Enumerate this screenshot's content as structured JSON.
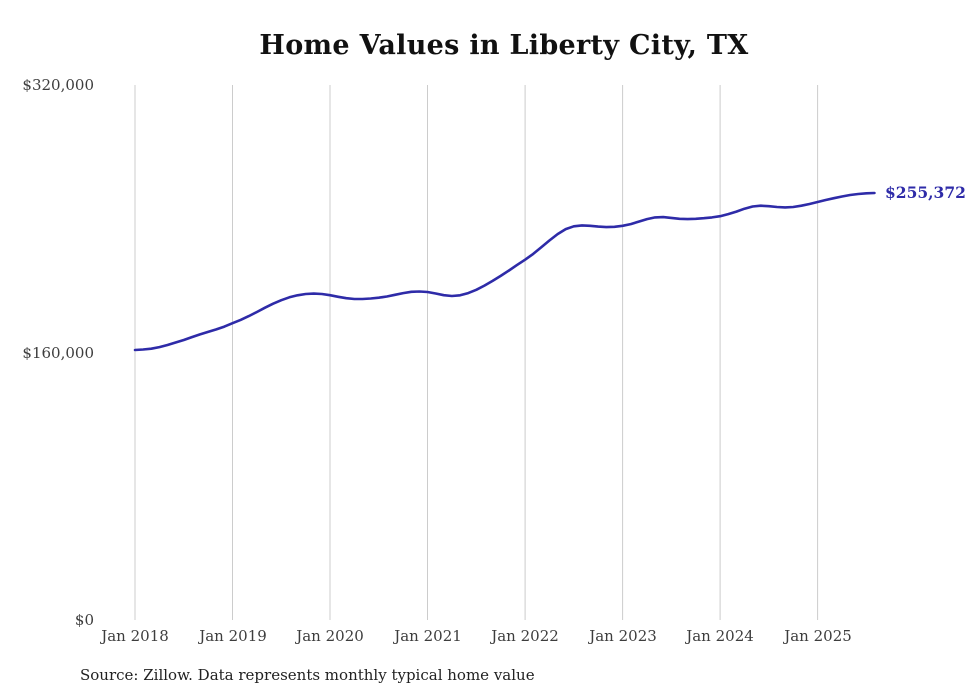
{
  "chart_data": {
    "type": "line",
    "title": "Home Values in Liberty City, TX",
    "series_name": "Monthly typical home value",
    "x": [
      "2018-01",
      "2018-02",
      "2018-03",
      "2018-04",
      "2018-05",
      "2018-06",
      "2018-07",
      "2018-08",
      "2018-09",
      "2018-10",
      "2018-11",
      "2018-12",
      "2019-01",
      "2019-02",
      "2019-03",
      "2019-04",
      "2019-05",
      "2019-06",
      "2019-07",
      "2019-08",
      "2019-09",
      "2019-10",
      "2019-11",
      "2019-12",
      "2020-01",
      "2020-02",
      "2020-03",
      "2020-04",
      "2020-05",
      "2020-06",
      "2020-07",
      "2020-08",
      "2020-09",
      "2020-10",
      "2020-11",
      "2020-12",
      "2021-01",
      "2021-02",
      "2021-03",
      "2021-04",
      "2021-05",
      "2021-06",
      "2021-07",
      "2021-08",
      "2021-09",
      "2021-10",
      "2021-11",
      "2021-12",
      "2022-01",
      "2022-02",
      "2022-03",
      "2022-04",
      "2022-05",
      "2022-06",
      "2022-07",
      "2022-08",
      "2022-09",
      "2022-10",
      "2022-11",
      "2022-12",
      "2023-01",
      "2023-02",
      "2023-03",
      "2023-04",
      "2023-05",
      "2023-06",
      "2023-07",
      "2023-08",
      "2023-09",
      "2023-10",
      "2023-11",
      "2023-12",
      "2024-01",
      "2024-02",
      "2024-03",
      "2024-04",
      "2024-05",
      "2024-06",
      "2024-07",
      "2024-08",
      "2024-09",
      "2024-10",
      "2024-11",
      "2024-12",
      "2025-01",
      "2025-02",
      "2025-03",
      "2025-04",
      "2025-05",
      "2025-06",
      "2025-07",
      "2025-08"
    ],
    "values": [
      161500,
      161800,
      162300,
      163200,
      164500,
      166000,
      167500,
      169200,
      170800,
      172300,
      173800,
      175500,
      177500,
      179500,
      181800,
      184200,
      186800,
      189200,
      191300,
      193000,
      194200,
      195000,
      195200,
      195000,
      194300,
      193300,
      192500,
      192000,
      192000,
      192300,
      192800,
      193500,
      194500,
      195500,
      196300,
      196500,
      196200,
      195300,
      194300,
      193800,
      194200,
      195500,
      197500,
      200000,
      202800,
      205800,
      209000,
      212300,
      215500,
      219000,
      223000,
      227000,
      230800,
      233800,
      235500,
      236000,
      235800,
      235300,
      235000,
      235200,
      235800,
      236800,
      238300,
      239800,
      240800,
      241000,
      240500,
      240000,
      239800,
      240000,
      240300,
      240800,
      241500,
      242800,
      244300,
      246000,
      247300,
      247800,
      247500,
      247000,
      246800,
      247000,
      247800,
      248800,
      250000,
      251200,
      252300,
      253300,
      254200,
      254800,
      255200,
      255372
    ],
    "ylim": [
      0,
      320000
    ],
    "y_tick_labels": [
      "$320,000",
      "$160,000",
      "$0"
    ],
    "x_tick_labels": [
      "Jan 2018",
      "Jan 2019",
      "Jan 2020",
      "Jan 2021",
      "Jan 2022",
      "Jan 2023",
      "Jan 2024",
      "Jan 2025"
    ],
    "end_label": "$255,372",
    "line_color": "#2e2ba8",
    "gridline_color": "#cccccc",
    "gridlines": "vertical-yearly",
    "legend_position": "none"
  },
  "footer": {
    "source_text": "Source: Zillow. Data represents monthly typical home value"
  }
}
